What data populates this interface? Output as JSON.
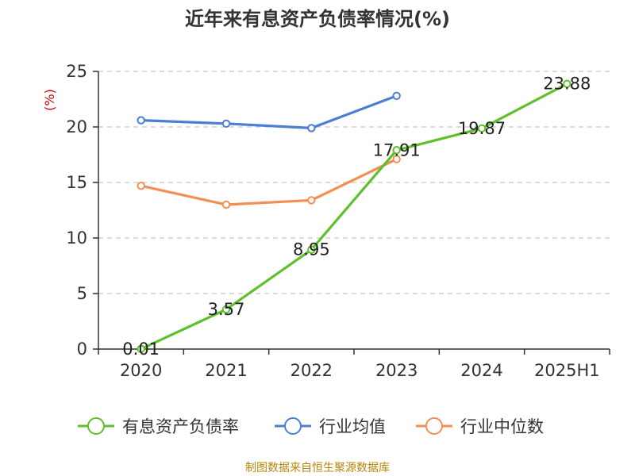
{
  "title": "近年来有息资产负债率情况(%)",
  "y_unit": "(%)",
  "source": "制图数据来自恒生聚源数据库",
  "chart_data": {
    "type": "line",
    "categories": [
      "2020",
      "2021",
      "2022",
      "2023",
      "2024",
      "2025H1"
    ],
    "ylim": [
      0,
      25
    ],
    "yticks": [
      0,
      5,
      10,
      15,
      20,
      25
    ],
    "grid": true,
    "legend_position": "bottom",
    "series": [
      {
        "name": "有息资产负债率",
        "color": "#5ec12c",
        "values": [
          0.01,
          3.57,
          8.95,
          17.91,
          19.87,
          23.88
        ],
        "labels": [
          "0.01",
          "3.57",
          "8.95",
          "17.91",
          "19.87",
          "23.88"
        ]
      },
      {
        "name": "行业均值",
        "color": "#4a7fd4",
        "values": [
          20.6,
          20.3,
          19.9,
          22.8,
          null,
          null
        ]
      },
      {
        "name": "行业中位数",
        "color": "#f58d55",
        "values": [
          14.7,
          13.0,
          13.4,
          17.1,
          null,
          null
        ]
      }
    ]
  }
}
